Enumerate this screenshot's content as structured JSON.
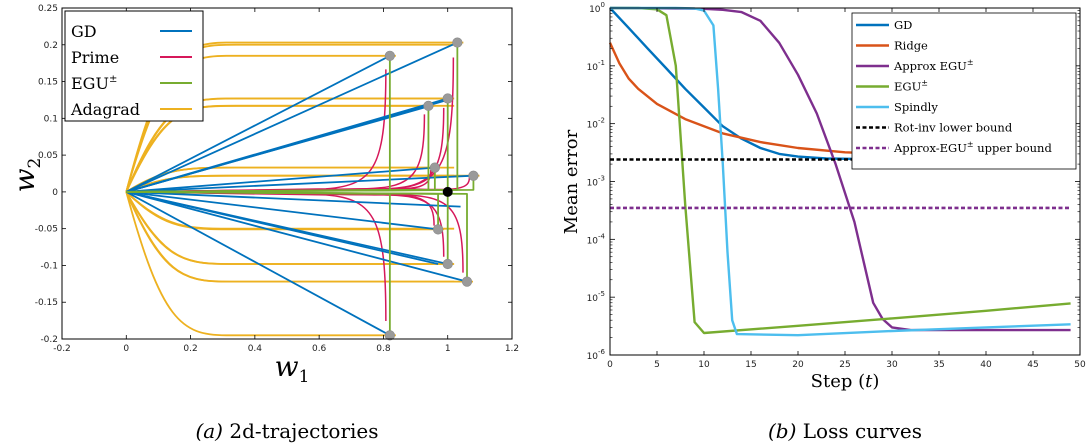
{
  "chart_data": [
    {
      "type": "line",
      "panel": "a",
      "caption_letter": "(a)",
      "caption_text": " 2d-trajectories",
      "xlabel": "w",
      "xlabel_sub": "1",
      "ylabel": "w",
      "ylabel_sub": "2",
      "xlim": [
        -0.2,
        1.2
      ],
      "ylim": [
        -0.2,
        0.25
      ],
      "xticks": [
        -0.2,
        0,
        0.2,
        0.4,
        0.6,
        0.8,
        1,
        1.2
      ],
      "xtick_labels": [
        "-0.2",
        "0",
        "0.2",
        "0.4",
        "0.6",
        "0.8",
        "1",
        "1.2"
      ],
      "yticks": [
        -0.2,
        -0.15,
        -0.1,
        -0.05,
        0,
        0.05,
        0.1,
        0.15,
        0.2,
        0.25
      ],
      "ytick_labels": [
        "-0.2",
        "-0.15",
        "-0.1",
        "-0.05",
        "0",
        "0.05",
        "0.1",
        "0.15",
        "0.2",
        "0.25"
      ],
      "grid": false,
      "legend_position": "top-left",
      "series": [
        {
          "name": "GD",
          "color": "#0072BD"
        },
        {
          "name": "Prime",
          "color": "#D6185A"
        },
        {
          "name": "EGU",
          "name_sup": "±",
          "color": "#77AC30"
        },
        {
          "name": "Adagrad",
          "color": "#EDB120"
        }
      ],
      "endpoints": [
        [
          0.82,
          0.185
        ],
        [
          1.03,
          0.203
        ],
        [
          1.0,
          0.127
        ],
        [
          0.94,
          0.117
        ],
        [
          0.96,
          0.033
        ],
        [
          1.08,
          0.022
        ],
        [
          0.97,
          -0.051
        ],
        [
          1.0,
          -0.098
        ],
        [
          1.06,
          -0.122
        ],
        [
          0.82,
          -0.195
        ]
      ],
      "target_point": [
        1.0,
        0.0
      ]
    },
    {
      "type": "line",
      "panel": "b",
      "caption_letter": "(b)",
      "caption_text": " Loss curves",
      "xlabel": "Step (",
      "xlabel_var": "t",
      "xlabel_end": ")",
      "ylabel": "Mean error",
      "xlim": [
        0,
        50
      ],
      "ylim": [
        1e-06,
        1
      ],
      "y_scale": "log",
      "xticks": [
        0,
        5,
        10,
        15,
        20,
        25,
        30,
        35,
        40,
        45,
        50
      ],
      "xtick_labels": [
        "0",
        "5",
        "10",
        "15",
        "20",
        "25",
        "30",
        "35",
        "40",
        "45",
        "50"
      ],
      "ytick_labels": [
        {
          "base": "10",
          "exp": "-6"
        },
        {
          "base": "10",
          "exp": "-5"
        },
        {
          "base": "10",
          "exp": "-4"
        },
        {
          "base": "10",
          "exp": "-3"
        },
        {
          "base": "10",
          "exp": "-2"
        },
        {
          "base": "10",
          "exp": "-1"
        },
        {
          "base": "10",
          "exp": "0"
        }
      ],
      "grid": false,
      "legend_position": "top-right",
      "series": [
        {
          "name": "GD",
          "color": "#0072BD",
          "dash": false,
          "points": [
            [
              0,
              1
            ],
            [
              2,
              0.45
            ],
            [
              4,
              0.2
            ],
            [
              6,
              0.09
            ],
            [
              8,
              0.04
            ],
            [
              10,
              0.019
            ],
            [
              12,
              0.009
            ],
            [
              14,
              0.0055
            ],
            [
              16,
              0.0038
            ],
            [
              18,
              0.003
            ],
            [
              20,
              0.0027
            ],
            [
              23,
              0.0025
            ],
            [
              30,
              0.0024
            ],
            [
              40,
              0.0024
            ],
            [
              49,
              0.0024
            ]
          ]
        },
        {
          "name": "Ridge",
          "color": "#D95319",
          "dash": false,
          "points": [
            [
              0,
              0.25
            ],
            [
              1,
              0.11
            ],
            [
              2,
              0.06
            ],
            [
              3,
              0.04
            ],
            [
              5,
              0.022
            ],
            [
              8,
              0.012
            ],
            [
              12,
              0.0068
            ],
            [
              16,
              0.0048
            ],
            [
              20,
              0.0038
            ],
            [
              25,
              0.0032
            ],
            [
              30,
              0.003
            ],
            [
              40,
              0.0028
            ],
            [
              49,
              0.0027
            ]
          ]
        },
        {
          "name": "Approx EGU",
          "name_sup": "±",
          "color": "#7E2F8E",
          "dash": false,
          "points": [
            [
              0,
              1
            ],
            [
              5,
              0.99
            ],
            [
              10,
              0.97
            ],
            [
              12,
              0.93
            ],
            [
              14,
              0.85
            ],
            [
              16,
              0.6
            ],
            [
              18,
              0.25
            ],
            [
              20,
              0.07
            ],
            [
              22,
              0.015
            ],
            [
              24,
              0.002
            ],
            [
              26,
              0.0002
            ],
            [
              27,
              4e-05
            ],
            [
              28,
              8e-06
            ],
            [
              29,
              4.2e-06
            ],
            [
              30,
              3e-06
            ],
            [
              32,
              2.7e-06
            ],
            [
              49,
              2.7e-06
            ]
          ]
        },
        {
          "name": "EGU",
          "name_sup": "±",
          "color": "#77AC30",
          "dash": false,
          "points": [
            [
              0,
              1
            ],
            [
              3,
              1
            ],
            [
              5,
              0.95
            ],
            [
              6,
              0.75
            ],
            [
              7,
              0.1
            ],
            [
              8,
              0.0004
            ],
            [
              9,
              3.7e-06
            ],
            [
              10,
              2.4e-06
            ],
            [
              20,
              3.2e-06
            ],
            [
              30,
              4.3e-06
            ],
            [
              40,
              5.8e-06
            ],
            [
              49,
              7.8e-06
            ]
          ]
        },
        {
          "name": "Spindly",
          "color": "#4DBEEE",
          "dash": false,
          "points": [
            [
              0,
              1
            ],
            [
              7,
              1
            ],
            [
              9,
              0.98
            ],
            [
              10,
              0.9
            ],
            [
              11,
              0.5
            ],
            [
              11.5,
              0.04
            ],
            [
              12,
              0.002
            ],
            [
              12.5,
              6e-05
            ],
            [
              13,
              4e-06
            ],
            [
              13.5,
              2.3e-06
            ],
            [
              20,
              2.2e-06
            ],
            [
              30,
              2.6e-06
            ],
            [
              40,
              3e-06
            ],
            [
              49,
              3.4e-06
            ]
          ]
        },
        {
          "name": "Rot-inv lower bound",
          "color": "#000000",
          "dash": true,
          "points": [
            [
              0,
              0.0024
            ],
            [
              49,
              0.0024
            ]
          ]
        },
        {
          "name": "Approx-EGU",
          "name_sup": "±",
          "name_suffix": " upper bound",
          "color": "#7E2F8E",
          "dash": true,
          "points": [
            [
              0,
              0.00035
            ],
            [
              49,
              0.00035
            ]
          ]
        }
      ]
    }
  ]
}
